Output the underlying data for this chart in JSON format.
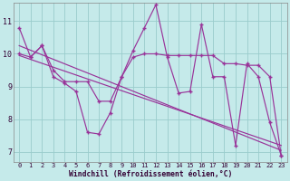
{
  "xlabel": "Windchill (Refroidissement éolien,°C)",
  "background_color": "#c5eaea",
  "line_color": "#993399",
  "grid_color": "#99cccc",
  "xlim": [
    -0.5,
    23.5
  ],
  "ylim": [
    6.7,
    11.55
  ],
  "yticks": [
    7,
    8,
    9,
    10,
    11
  ],
  "xticks": [
    0,
    1,
    2,
    3,
    4,
    5,
    6,
    7,
    8,
    9,
    10,
    11,
    12,
    13,
    14,
    15,
    16,
    17,
    18,
    19,
    20,
    21,
    22,
    23
  ],
  "zigzag_y": [
    10.8,
    9.9,
    10.25,
    9.3,
    9.1,
    8.85,
    7.6,
    7.55,
    8.2,
    9.3,
    10.1,
    10.8,
    11.5,
    9.9,
    8.8,
    8.85,
    10.9,
    9.3,
    9.3,
    7.2,
    9.7,
    9.3,
    7.9,
    6.9
  ],
  "smooth_y": [
    10.0,
    9.9,
    10.25,
    9.5,
    9.15,
    9.15,
    9.15,
    8.55,
    8.55,
    9.3,
    9.9,
    10.0,
    10.0,
    9.95,
    9.95,
    9.95,
    9.95,
    9.95,
    9.7,
    9.7,
    9.65,
    9.65,
    9.3,
    6.9
  ],
  "regline1_x": [
    0,
    23
  ],
  "regline1_y": [
    10.25,
    7.05
  ],
  "regline2_x": [
    0,
    23
  ],
  "regline2_y": [
    9.95,
    7.2
  ]
}
